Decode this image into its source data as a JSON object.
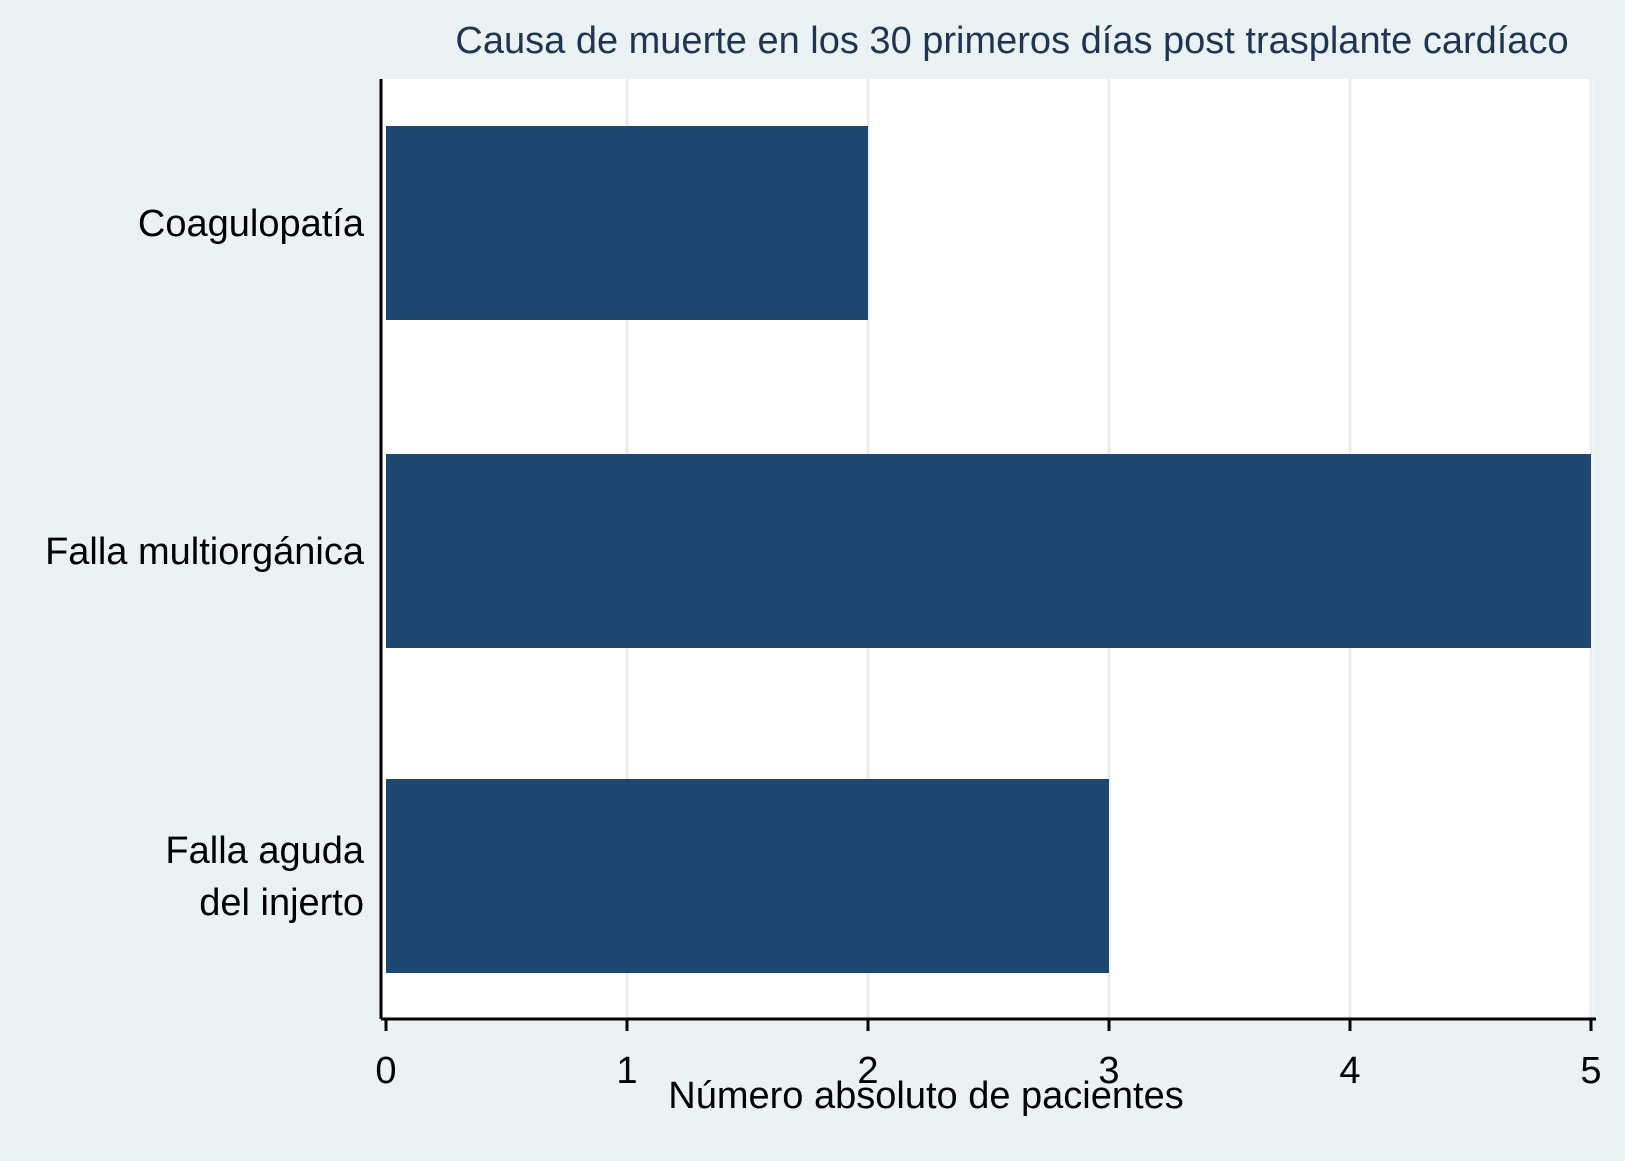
{
  "chart_data": {
    "type": "bar",
    "orientation": "horizontal",
    "title": "Causa de muerte en los 30 primeros días post trasplante cardíaco",
    "xlabel": "Número absoluto de pacientes",
    "ylabel": "",
    "categories": [
      [
        "Coagulopatía"
      ],
      [
        "Falla multiorgánica"
      ],
      [
        "Falla aguda",
        "del injerto"
      ]
    ],
    "values": [
      2,
      5,
      3
    ],
    "xlim": [
      0,
      5
    ],
    "xticks": [
      "0",
      "1",
      "2",
      "3",
      "4",
      "5"
    ],
    "grid": true,
    "colors": {
      "background": "#eaf2f3",
      "plot_area": "#ffffff",
      "bar": "#1d476e",
      "grid": "#e6eef0",
      "title": "#1f3552"
    }
  }
}
